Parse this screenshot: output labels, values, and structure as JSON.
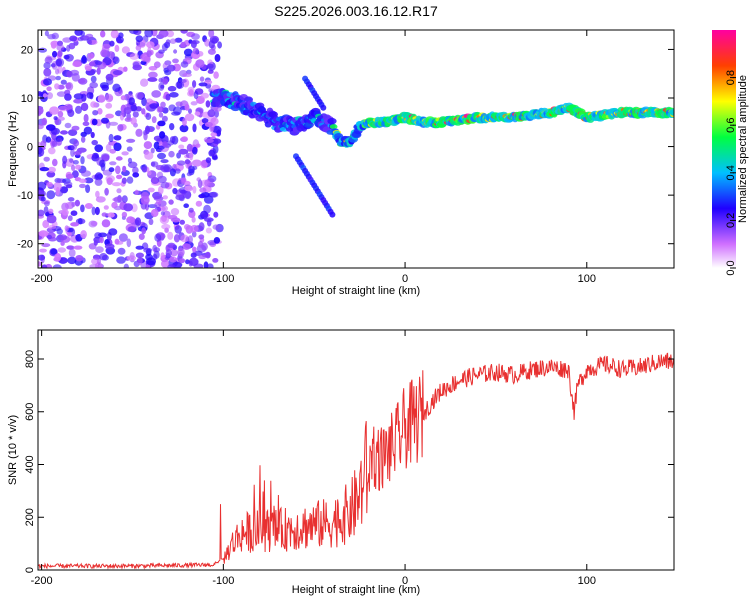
{
  "title": "S225.2026.003.16.12.R17",
  "chart_data": [
    {
      "type": "heatmap",
      "title": "S225.2026.003.16.12.R17",
      "xlabel": "Height of straight line (km)",
      "ylabel": "Frequency (Hz)",
      "xlim": [
        -202,
        148
      ],
      "ylim": [
        -25,
        24
      ],
      "xticks": [
        -200,
        -100,
        0,
        100
      ],
      "yticks": [
        -20,
        -10,
        0,
        10,
        20
      ],
      "colorbar": {
        "label": "Normalized spectral amplitude",
        "range": [
          0.0,
          1.0
        ],
        "ticks": [
          0.0,
          0.2,
          0.4,
          0.6,
          0.8
        ]
      },
      "ridge": {
        "x": [
          -100,
          -90,
          -80,
          -70,
          -60,
          -50,
          -40,
          -35,
          -30,
          -25,
          -20,
          -10,
          0,
          10,
          20,
          40,
          60,
          80,
          90,
          100,
          120,
          148
        ],
        "frequency": [
          10,
          9,
          7,
          5,
          4,
          6,
          4,
          1,
          1,
          4,
          5,
          5,
          6,
          5,
          5,
          6,
          6,
          7,
          8,
          6,
          7,
          7
        ]
      }
    },
    {
      "type": "line",
      "xlabel": "Height of straight line (km)",
      "ylabel": "SNR (10 * v/v)",
      "xlim": [
        -202,
        148
      ],
      "ylim": [
        0,
        910
      ],
      "xticks": [
        -200,
        -100,
        0,
        100
      ],
      "yticks": [
        0,
        200,
        400,
        600,
        800
      ],
      "series": [
        {
          "name": "SNR",
          "color": "#e83030",
          "x": [
            -202,
            -180,
            -160,
            -140,
            -120,
            -105,
            -100,
            -95,
            -90,
            -80,
            -70,
            -60,
            -50,
            -40,
            -35,
            -30,
            -25,
            -22,
            -20,
            -18,
            -15,
            -10,
            -5,
            0,
            5,
            10,
            15,
            20,
            30,
            40,
            50,
            60,
            70,
            80,
            90,
            93,
            95,
            100,
            110,
            120,
            130,
            140,
            148
          ],
          "y": [
            15,
            15,
            15,
            16,
            18,
            20,
            40,
            100,
            140,
            150,
            150,
            160,
            170,
            180,
            200,
            220,
            280,
            380,
            350,
            450,
            420,
            440,
            480,
            540,
            560,
            590,
            640,
            680,
            720,
            740,
            750,
            740,
            760,
            770,
            760,
            600,
            700,
            760,
            780,
            760,
            770,
            790,
            790
          ]
        }
      ]
    }
  ]
}
